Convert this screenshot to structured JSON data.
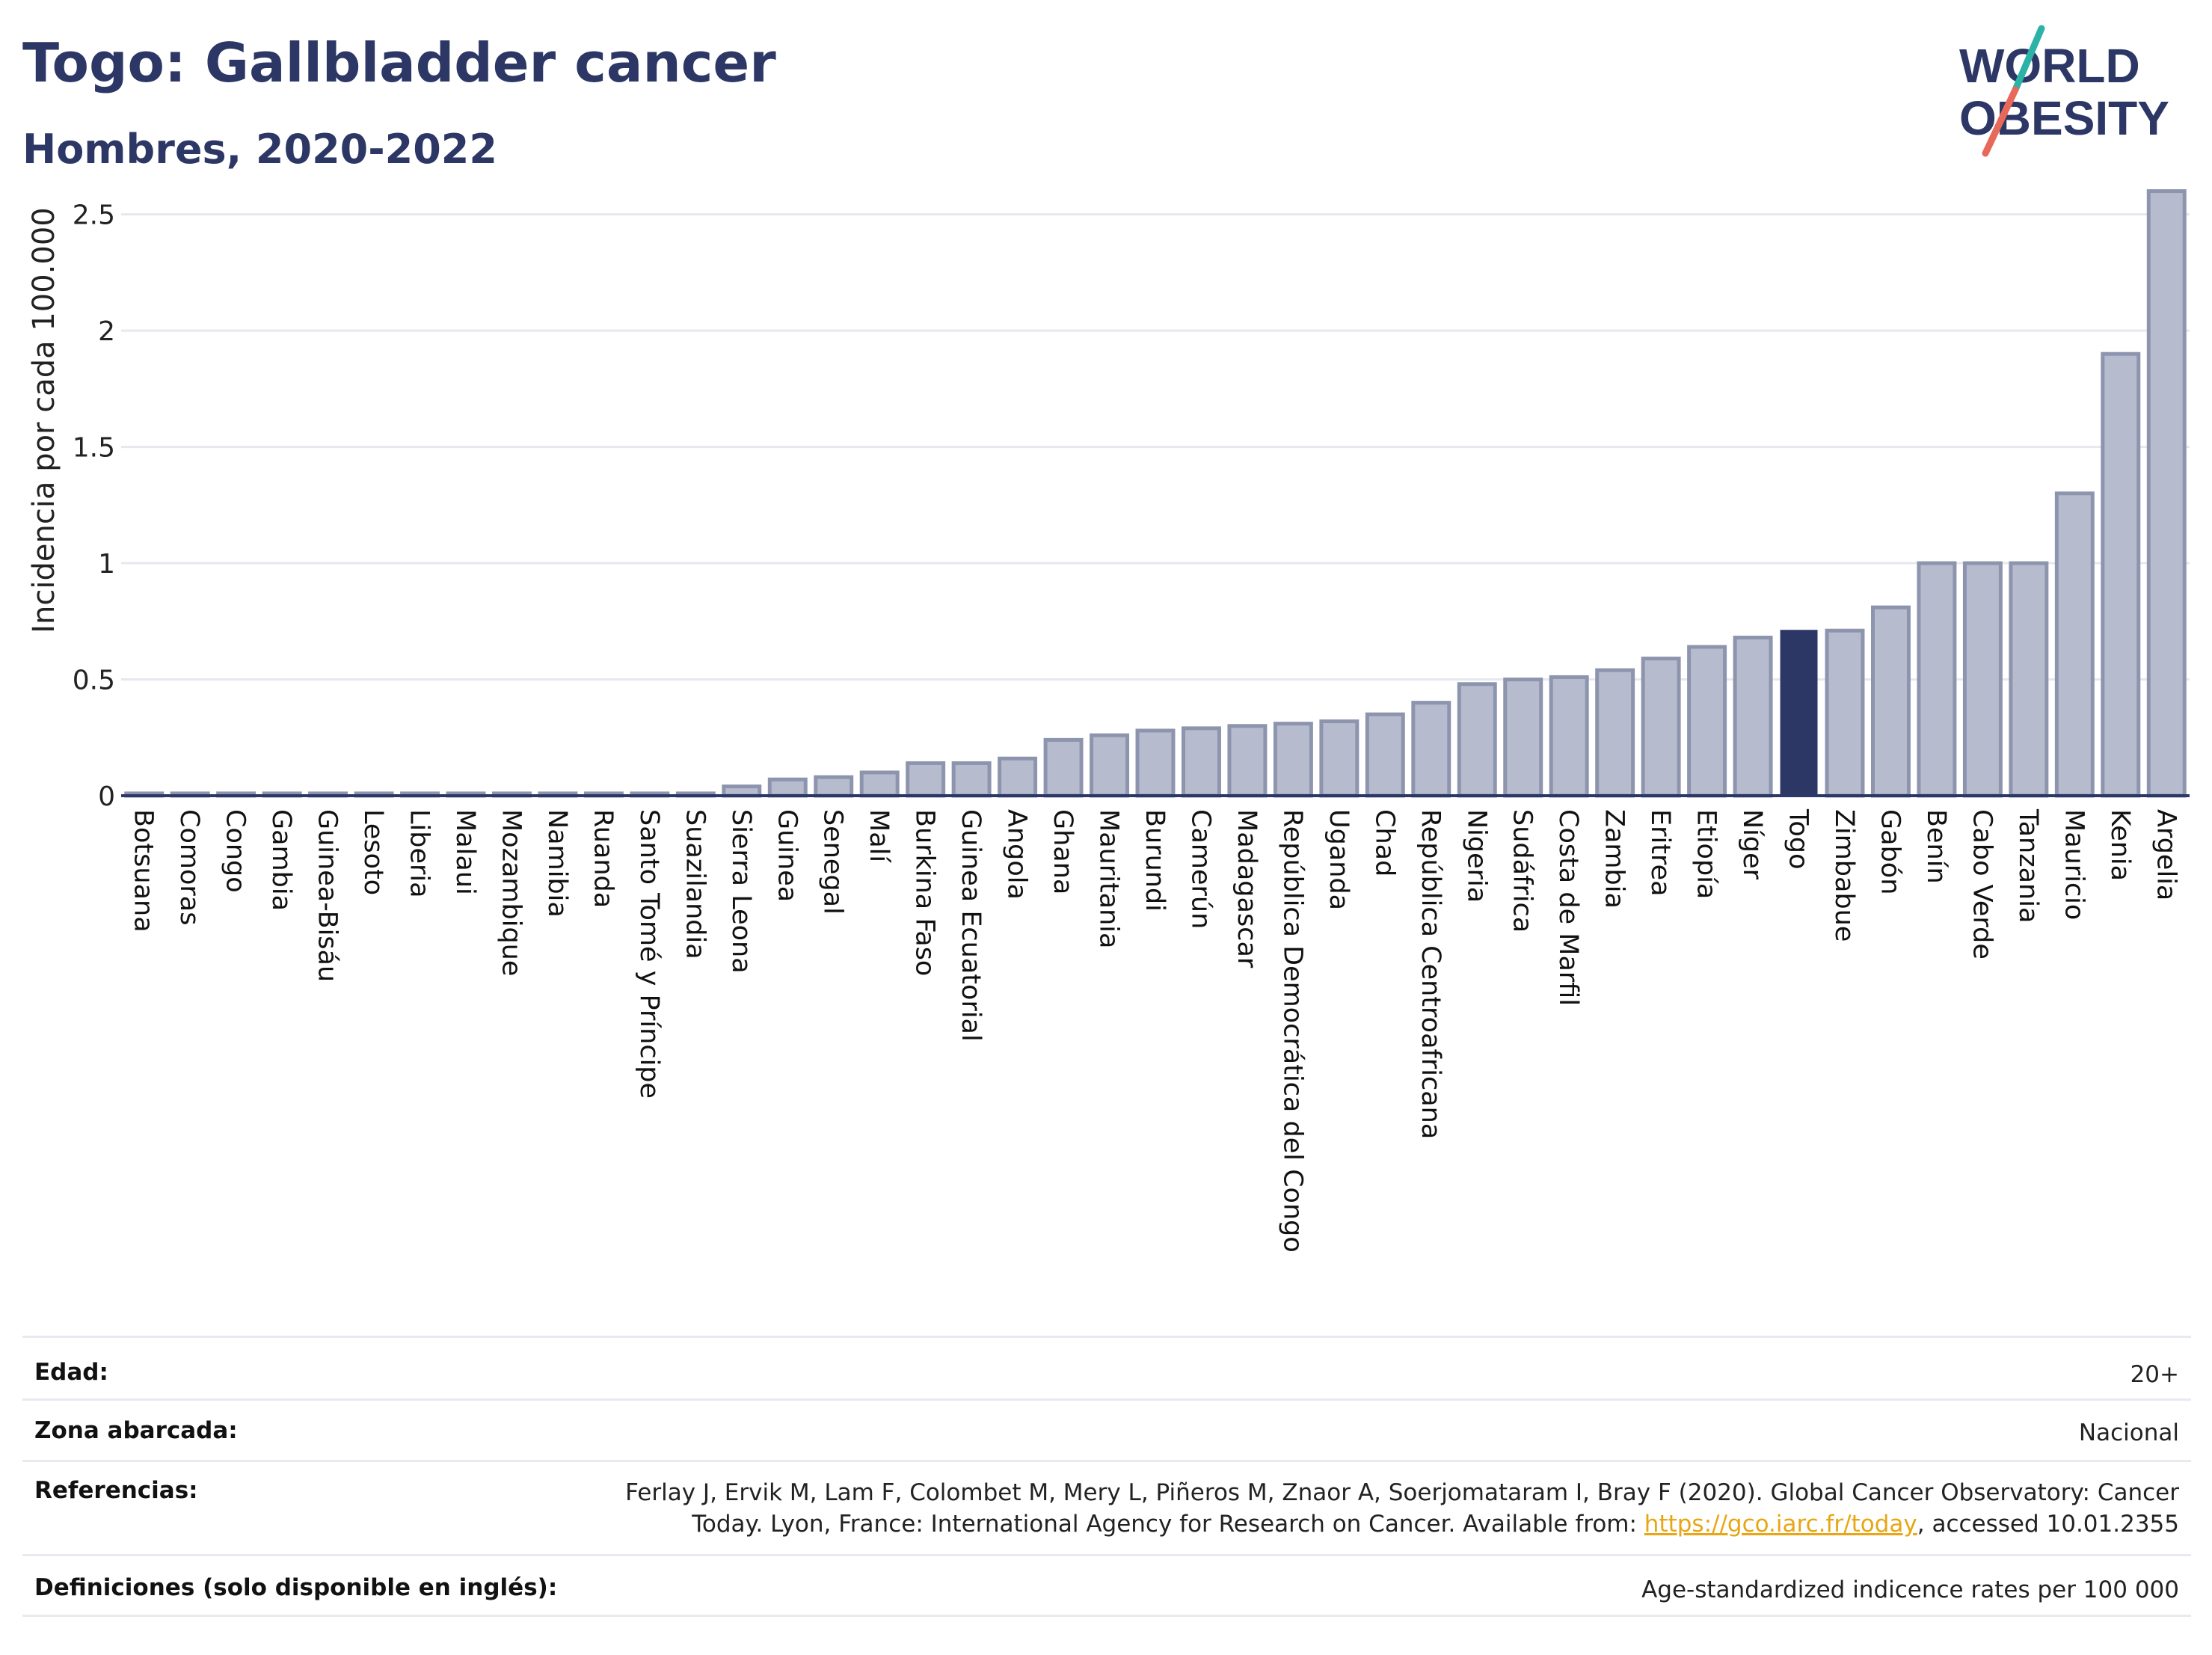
{
  "header": {
    "title": "Togo: Gallbladder cancer",
    "subtitle": "Hombres, 2020-2022"
  },
  "logo": {
    "line1": "WORLD",
    "line2": "OBESITY",
    "colors": {
      "text": "#2c3765",
      "slash_top": "#2bb3a8",
      "slash_bottom": "#e8685a"
    }
  },
  "colors": {
    "highlight": "#2c3765",
    "bar_fill": "#b6bccd",
    "bar_stroke": "#8d95ae",
    "grid": "#e6e8ee",
    "axis": "#2c3765"
  },
  "chart_data": {
    "type": "bar",
    "ylabel": "Incidencia por cada 100.000",
    "ylim": [
      0,
      2.65
    ],
    "yticks": [
      0,
      0.5,
      1,
      1.5,
      2,
      2.5
    ],
    "ytick_labels": [
      "0",
      "0.5",
      "1",
      "1.5",
      "2",
      "2.5"
    ],
    "highlight": "Togo",
    "grid": true,
    "categories": [
      "Botsuana",
      "Comoras",
      "Congo",
      "Gambia",
      "Guinea-Bisáu",
      "Lesoto",
      "Liberia",
      "Malaui",
      "Mozambique",
      "Namibia",
      "Ruanda",
      "Santo Tomé y Príncipe",
      "Suazilandia",
      "Sierra Leona",
      "Guinea",
      "Senegal",
      "Malí",
      "Burkina Faso",
      "Guinea Ecuatorial",
      "Angola",
      "Ghana",
      "Mauritania",
      "Burundi",
      "Camerún",
      "Madagascar",
      "República Democrática del Congo",
      "Uganda",
      "Chad",
      "República Centroafricana",
      "Nigeria",
      "Sudáfrica",
      "Costa de Marfil",
      "Zambia",
      "Eritrea",
      "Etiopía",
      "Níger",
      "Togo",
      "Zimbabue",
      "Gabón",
      "Benín",
      "Cabo Verde",
      "Tanzania",
      "Mauricio",
      "Kenia",
      "Argelia"
    ],
    "values": [
      0.01,
      0.01,
      0.01,
      0.01,
      0.01,
      0.01,
      0.01,
      0.01,
      0.01,
      0.01,
      0.01,
      0.01,
      0.01,
      0.04,
      0.07,
      0.08,
      0.1,
      0.14,
      0.14,
      0.16,
      0.24,
      0.26,
      0.28,
      0.29,
      0.3,
      0.31,
      0.32,
      0.35,
      0.4,
      0.48,
      0.5,
      0.51,
      0.54,
      0.59,
      0.64,
      0.68,
      0.71,
      0.71,
      0.81,
      1.0,
      1.0,
      1.0,
      1.3,
      1.9,
      2.6
    ]
  },
  "meta": [
    {
      "label": "Edad:",
      "value": "20+"
    },
    {
      "label": "Zona abarcada:",
      "value": "Nacional"
    },
    {
      "label": "Referencias:",
      "value_line1": "Ferlay J, Ervik M, Lam F, Colombet M, Mery L, Piñeros M, Znaor A, Soerjomataram I, Bray F (2020). Global Cancer Observatory: Cancer",
      "value_line2_pre": "Today. Lyon, France: International Agency for Research on Cancer. Available from: ",
      "link": "https://gco.iarc.fr/today",
      "value_line2_post": ", accessed 10.01.2355"
    },
    {
      "label": "Definiciones (solo disponible en inglés):",
      "value": "Age-standardized indicence rates per 100 000"
    }
  ]
}
